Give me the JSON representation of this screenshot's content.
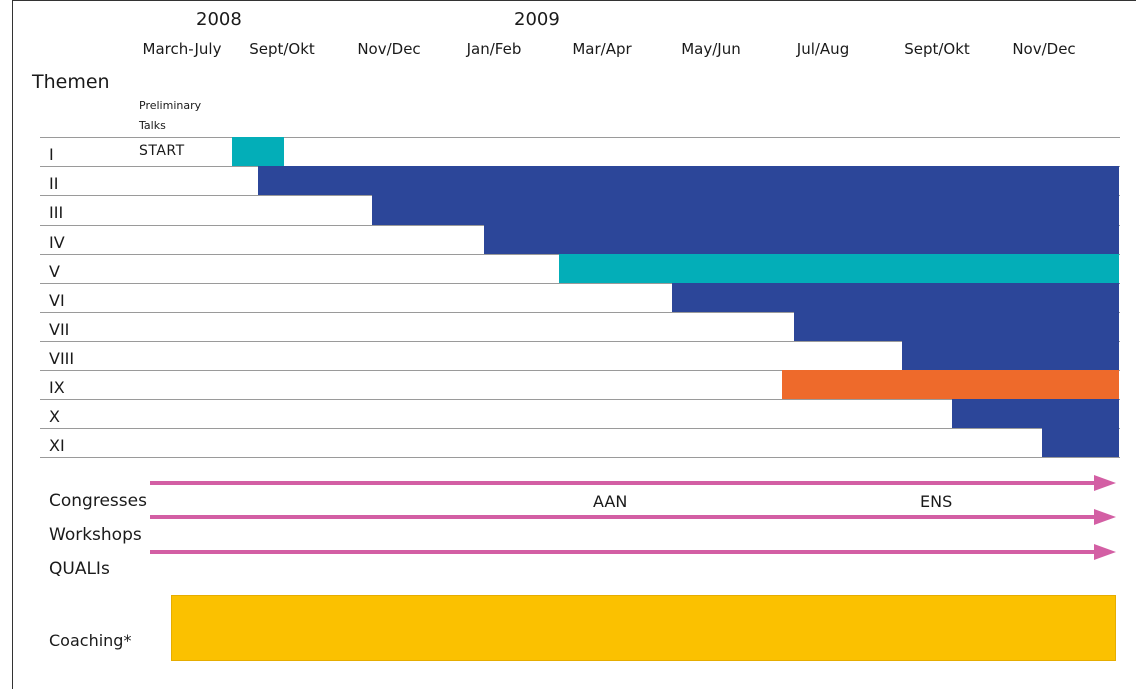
{
  "years": [
    "2008",
    "2009"
  ],
  "periods": [
    "March-July",
    "Sept/Okt",
    "Nov/Dec",
    "Jan/Feb",
    "Mar/Apr",
    "May/Jun",
    "Jul/Aug",
    "Sept/Okt",
    "Nov/Dec"
  ],
  "themen_label": "Themen",
  "preliminary_label_1": "Preliminary",
  "preliminary_label_2": "Talks",
  "start_label": "START",
  "colors": {
    "blue": "#2c4699",
    "teal": "#03aeb8",
    "orange": "#ee6a2b",
    "magenta": "#d35fa4",
    "yellow": "#fbc100"
  },
  "rows": [
    {
      "label": "I",
      "color": "teal",
      "start_period": 1.0,
      "end_period": 1.5
    },
    {
      "label": "II",
      "color": "blue",
      "start_period": 1.25,
      "end_period": 9
    },
    {
      "label": "III",
      "color": "blue",
      "start_period": 2.35,
      "end_period": 9
    },
    {
      "label": "IV",
      "color": "blue",
      "start_period": 3.4,
      "end_period": 9
    },
    {
      "label": "V",
      "color": "teal",
      "start_period": 4.1,
      "end_period": 9
    },
    {
      "label": "VI",
      "color": "blue",
      "start_period": 5.15,
      "end_period": 9
    },
    {
      "label": "VII",
      "color": "blue",
      "start_period": 6.25,
      "end_period": 9
    },
    {
      "label": "VIII",
      "color": "blue",
      "start_period": 7.2,
      "end_period": 9
    },
    {
      "label": "IX",
      "color": "orange",
      "start_period": 6.15,
      "end_period": 9
    },
    {
      "label": "X",
      "color": "blue",
      "start_period": 7.65,
      "end_period": 9
    },
    {
      "label": "XI",
      "color": "blue",
      "start_period": 8.4,
      "end_period": 9
    }
  ],
  "streams": [
    {
      "label": "Congresses"
    },
    {
      "label": "Workshops"
    },
    {
      "label": "QUALIs"
    }
  ],
  "events": [
    {
      "label": "AAN",
      "period": "Mar/Apr"
    },
    {
      "label": "ENS",
      "period": "Sept/Okt"
    }
  ],
  "coaching_label": "Coaching*"
}
